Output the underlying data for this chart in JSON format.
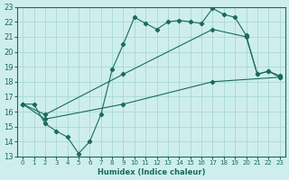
{
  "xlabel": "Humidex (Indice chaleur)",
  "bg_color": "#ceeeed",
  "grid_color": "#a8d8d4",
  "line_color": "#1a6b5a",
  "xlim": [
    -0.5,
    23.5
  ],
  "ylim": [
    13,
    23
  ],
  "xticks": [
    0,
    1,
    2,
    3,
    4,
    5,
    6,
    7,
    8,
    9,
    10,
    11,
    12,
    13,
    14,
    15,
    16,
    17,
    18,
    19,
    20,
    21,
    22,
    23
  ],
  "yticks": [
    13,
    14,
    15,
    16,
    17,
    18,
    19,
    20,
    21,
    22,
    23
  ],
  "line1_x": [
    0,
    1,
    2,
    3,
    4,
    5,
    6,
    7,
    8,
    9,
    10,
    11,
    12,
    13,
    14,
    15,
    16,
    17,
    18,
    19,
    20,
    21,
    22,
    23
  ],
  "line1_y": [
    16.5,
    16.5,
    15.2,
    14.7,
    14.3,
    13.2,
    14.0,
    15.8,
    18.8,
    20.5,
    22.3,
    21.9,
    21.5,
    22.0,
    22.1,
    22.0,
    21.9,
    22.9,
    22.5,
    22.3,
    21.1,
    18.5,
    18.7,
    18.4
  ],
  "line2_x": [
    0,
    2,
    9,
    17,
    20,
    21,
    22,
    23
  ],
  "line2_y": [
    16.5,
    15.8,
    18.5,
    21.5,
    21.0,
    18.5,
    18.7,
    18.3
  ],
  "line3_x": [
    0,
    2,
    9,
    17,
    23
  ],
  "line3_y": [
    16.5,
    15.5,
    16.5,
    18.0,
    18.3
  ]
}
